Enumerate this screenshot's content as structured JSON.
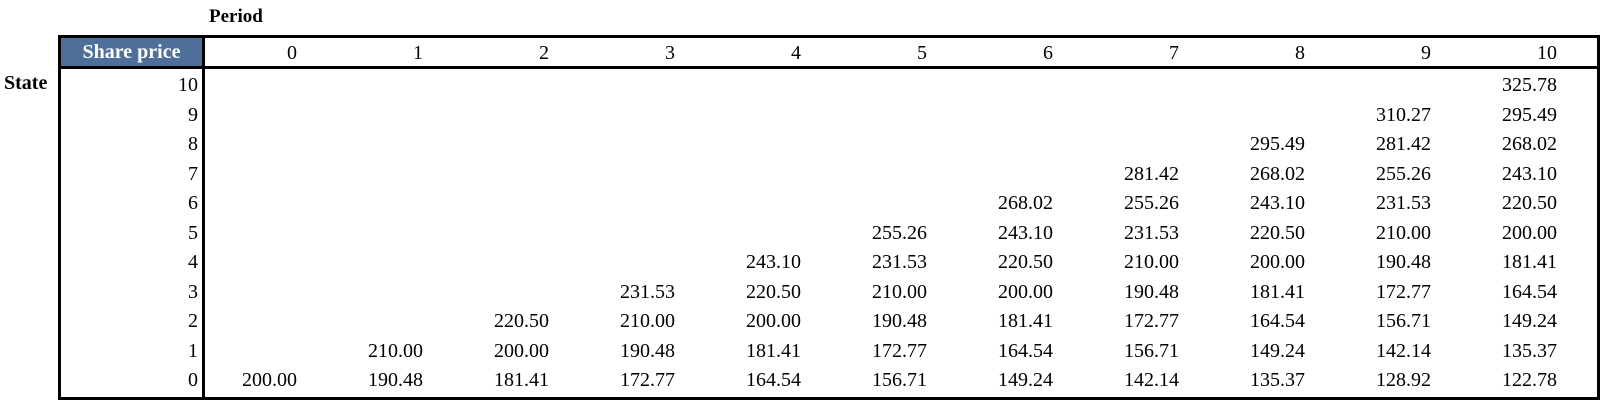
{
  "period_label": "Period",
  "state_label": "State",
  "corner_label": "Share price",
  "periods": [
    "0",
    "1",
    "2",
    "3",
    "4",
    "5",
    "6",
    "7",
    "8",
    "9",
    "10"
  ],
  "states": [
    "10",
    "9",
    "8",
    "7",
    "6",
    "5",
    "4",
    "3",
    "2",
    "1",
    "0"
  ],
  "rows": [
    [
      "",
      "",
      "",
      "",
      "",
      "",
      "",
      "",
      "",
      "",
      "325.78"
    ],
    [
      "",
      "",
      "",
      "",
      "",
      "",
      "",
      "",
      "",
      "310.27",
      "295.49"
    ],
    [
      "",
      "",
      "",
      "",
      "",
      "",
      "",
      "",
      "295.49",
      "281.42",
      "268.02"
    ],
    [
      "",
      "",
      "",
      "",
      "",
      "",
      "",
      "281.42",
      "268.02",
      "255.26",
      "243.10"
    ],
    [
      "",
      "",
      "",
      "",
      "",
      "",
      "268.02",
      "255.26",
      "243.10",
      "231.53",
      "220.50"
    ],
    [
      "",
      "",
      "",
      "",
      "",
      "255.26",
      "243.10",
      "231.53",
      "220.50",
      "210.00",
      "200.00"
    ],
    [
      "",
      "",
      "",
      "",
      "243.10",
      "231.53",
      "220.50",
      "210.00",
      "200.00",
      "190.48",
      "181.41"
    ],
    [
      "",
      "",
      "",
      "231.53",
      "220.50",
      "210.00",
      "200.00",
      "190.48",
      "181.41",
      "172.77",
      "164.54"
    ],
    [
      "",
      "",
      "220.50",
      "210.00",
      "200.00",
      "190.48",
      "181.41",
      "172.77",
      "164.54",
      "156.71",
      "149.24"
    ],
    [
      "",
      "210.00",
      "200.00",
      "190.48",
      "181.41",
      "172.77",
      "164.54",
      "156.71",
      "149.24",
      "142.14",
      "135.37"
    ],
    [
      "200.00",
      "190.48",
      "181.41",
      "172.77",
      "164.54",
      "156.71",
      "149.24",
      "142.14",
      "135.37",
      "128.92",
      "122.78"
    ]
  ],
  "colors": {
    "header_fill": "#4d6f99",
    "header_text": "#ffffff",
    "border": "#000000"
  }
}
